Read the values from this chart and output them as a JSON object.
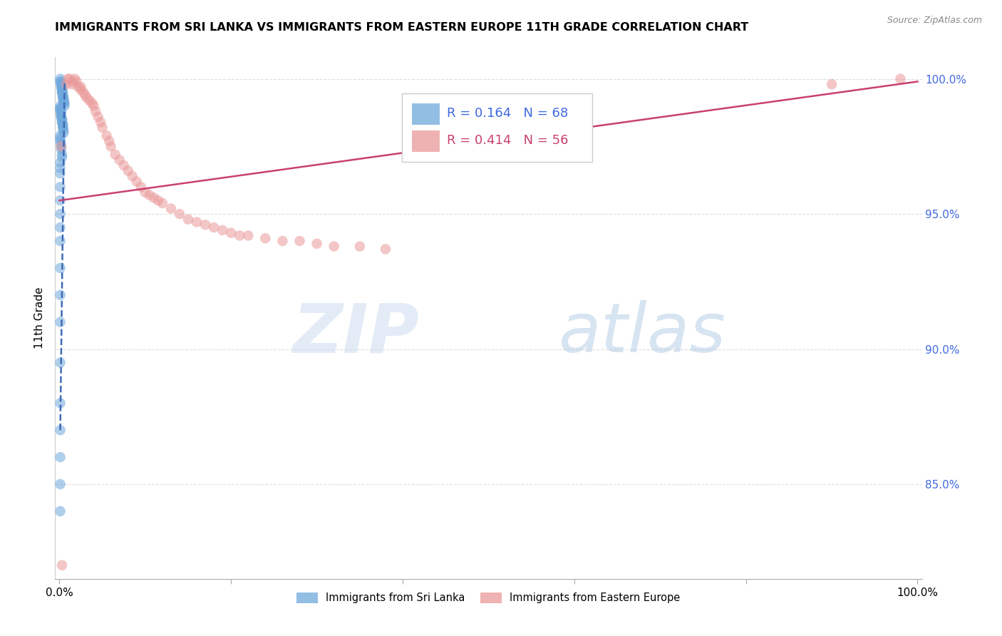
{
  "title": "IMMIGRANTS FROM SRI LANKA VS IMMIGRANTS FROM EASTERN EUROPE 11TH GRADE CORRELATION CHART",
  "source": "Source: ZipAtlas.com",
  "ylabel": "11th Grade",
  "ylabel_right_ticks": [
    "100.0%",
    "95.0%",
    "90.0%",
    "85.0%"
  ],
  "ylabel_right_vals": [
    1.0,
    0.95,
    0.9,
    0.85
  ],
  "legend_blue_R": "R = 0.164",
  "legend_blue_N": "N = 68",
  "legend_pink_R": "R = 0.414",
  "legend_pink_N": "N = 56",
  "blue_color": "#6fa8dc",
  "pink_color": "#ea9999",
  "blue_line_color": "#3d6bb5",
  "pink_line_color": "#c94070",
  "right_axis_color": "#4169e1",
  "watermark_zip": "ZIP",
  "watermark_atlas": "atlas",
  "blue_scatter_x": [
    0.001,
    0.001,
    0.002,
    0.002,
    0.002,
    0.002,
    0.003,
    0.003,
    0.003,
    0.003,
    0.003,
    0.003,
    0.003,
    0.004,
    0.004,
    0.004,
    0.004,
    0.004,
    0.005,
    0.005,
    0.005,
    0.005,
    0.006,
    0.006,
    0.001,
    0.001,
    0.001,
    0.001,
    0.002,
    0.002,
    0.002,
    0.002,
    0.002,
    0.003,
    0.003,
    0.003,
    0.003,
    0.004,
    0.004,
    0.004,
    0.004,
    0.005,
    0.005,
    0.001,
    0.001,
    0.001,
    0.002,
    0.002,
    0.002,
    0.003,
    0.003,
    0.001,
    0.001,
    0.001,
    0.001,
    0.001,
    0.001,
    0.001,
    0.001,
    0.001,
    0.001,
    0.001,
    0.001,
    0.001,
    0.001,
    0.001,
    0.001,
    0.001
  ],
  "blue_scatter_y": [
    1.0,
    0.999,
    0.999,
    0.998,
    0.998,
    0.997,
    0.997,
    0.997,
    0.996,
    0.996,
    0.996,
    0.995,
    0.995,
    0.995,
    0.994,
    0.994,
    0.993,
    0.993,
    0.993,
    0.992,
    0.992,
    0.991,
    0.991,
    0.99,
    0.99,
    0.989,
    0.989,
    0.988,
    0.988,
    0.987,
    0.987,
    0.986,
    0.986,
    0.985,
    0.985,
    0.984,
    0.984,
    0.983,
    0.983,
    0.982,
    0.982,
    0.981,
    0.98,
    0.979,
    0.978,
    0.977,
    0.976,
    0.975,
    0.974,
    0.972,
    0.971,
    0.969,
    0.967,
    0.965,
    0.96,
    0.955,
    0.95,
    0.945,
    0.94,
    0.93,
    0.92,
    0.91,
    0.895,
    0.88,
    0.87,
    0.86,
    0.85,
    0.84
  ],
  "pink_scatter_x": [
    0.002,
    0.008,
    0.01,
    0.012,
    0.015,
    0.015,
    0.018,
    0.02,
    0.022,
    0.025,
    0.025,
    0.028,
    0.03,
    0.032,
    0.035,
    0.038,
    0.04,
    0.042,
    0.045,
    0.048,
    0.05,
    0.055,
    0.058,
    0.06,
    0.065,
    0.07,
    0.075,
    0.08,
    0.085,
    0.09,
    0.095,
    0.1,
    0.105,
    0.11,
    0.115,
    0.12,
    0.13,
    0.14,
    0.15,
    0.16,
    0.17,
    0.18,
    0.19,
    0.2,
    0.21,
    0.22,
    0.24,
    0.26,
    0.28,
    0.3,
    0.32,
    0.35,
    0.38,
    0.9,
    0.98,
    0.003
  ],
  "pink_scatter_y": [
    0.975,
    0.998,
    1.0,
    1.0,
    0.999,
    0.998,
    1.0,
    0.999,
    0.997,
    0.997,
    0.996,
    0.995,
    0.994,
    0.993,
    0.992,
    0.991,
    0.99,
    0.988,
    0.986,
    0.984,
    0.982,
    0.979,
    0.977,
    0.975,
    0.972,
    0.97,
    0.968,
    0.966,
    0.964,
    0.962,
    0.96,
    0.958,
    0.957,
    0.956,
    0.955,
    0.954,
    0.952,
    0.95,
    0.948,
    0.947,
    0.946,
    0.945,
    0.944,
    0.943,
    0.942,
    0.942,
    0.941,
    0.94,
    0.94,
    0.939,
    0.938,
    0.938,
    0.937,
    0.998,
    1.0,
    0.82
  ],
  "blue_trend_x": [
    0.001,
    0.006
  ],
  "blue_trend_y": [
    0.87,
    0.999
  ],
  "pink_trend_x": [
    0.0,
    1.0
  ],
  "pink_trend_y": [
    0.955,
    0.999
  ],
  "xmin": -0.005,
  "xmax": 1.005,
  "ymin": 0.815,
  "ymax": 1.008,
  "background_color": "#ffffff",
  "grid_color": "#dddddd"
}
